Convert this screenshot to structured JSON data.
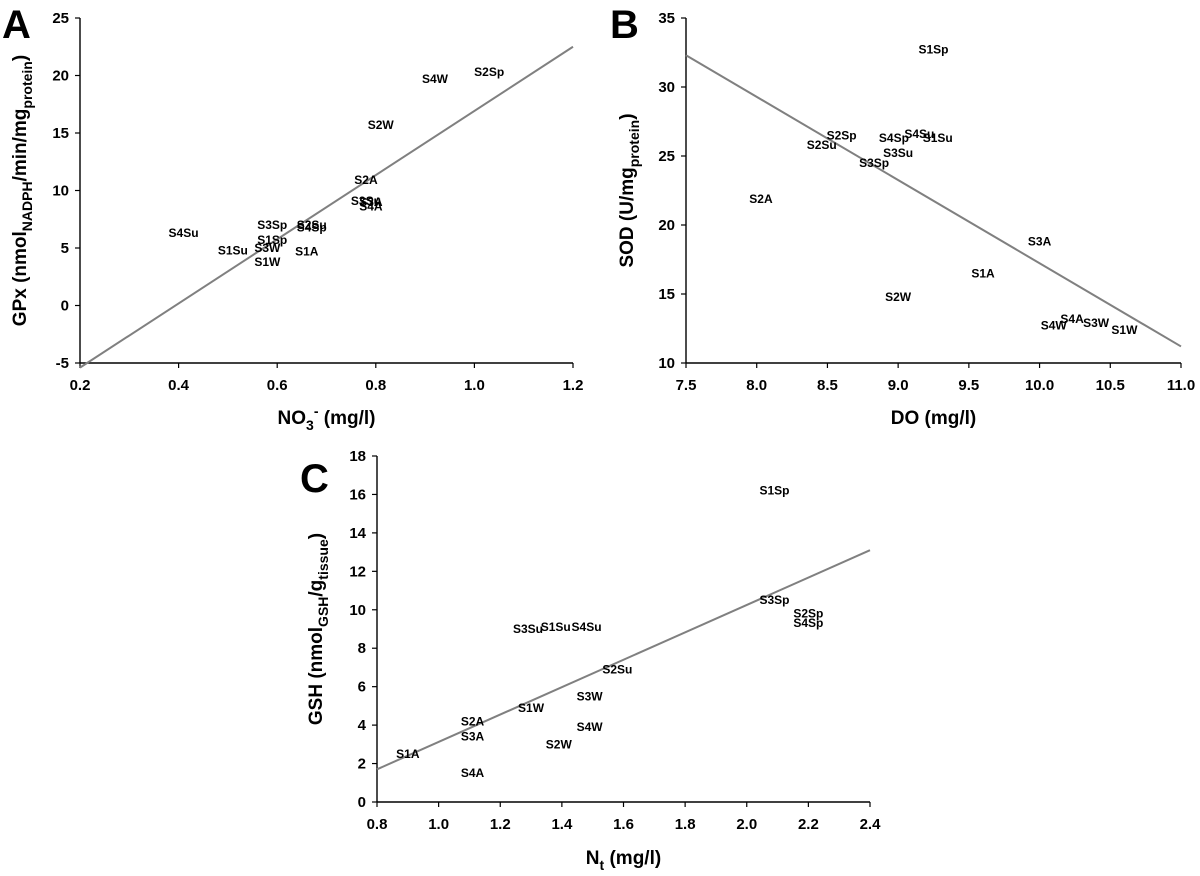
{
  "chart_data": [
    {
      "panel": "A",
      "type": "scatter",
      "title": "",
      "xlabel": {
        "main": "NO",
        "sub": "3",
        "sup": "-",
        "suffix": " (mg/l)"
      },
      "ylabel": {
        "parts": [
          {
            "t": "GPx (nmol",
            "s": "n"
          },
          {
            "t": "NADPH",
            "s": "sub"
          },
          {
            "t": "/min/mg",
            "s": "n"
          },
          {
            "t": "protein",
            "s": "sub"
          },
          {
            "t": ")",
            "s": "n"
          }
        ]
      },
      "xlim": [
        0.2,
        1.2
      ],
      "ylim": [
        -5,
        25
      ],
      "xticks": [
        0.2,
        0.4,
        0.6,
        0.8,
        1.0,
        1.2
      ],
      "xtick_labels": [
        "0.2",
        "0.4",
        "0.6",
        "0.8",
        "1.0",
        "1.2"
      ],
      "yticks": [
        -5,
        0,
        5,
        10,
        15,
        20,
        25
      ],
      "ytick_labels": [
        "-5",
        "0",
        "5",
        "10",
        "15",
        "20",
        "25"
      ],
      "points": [
        {
          "label": "S4W",
          "x": 0.92,
          "y": 19.7
        },
        {
          "label": "S2Sp",
          "x": 1.03,
          "y": 20.3
        },
        {
          "label": "S2W",
          "x": 0.81,
          "y": 15.7
        },
        {
          "label": "S2A",
          "x": 0.78,
          "y": 10.9
        },
        {
          "label": "S3Su",
          "x": 0.78,
          "y": 9.1
        },
        {
          "label": "S3A",
          "x": 0.79,
          "y": 9.0
        },
        {
          "label": "S4A",
          "x": 0.79,
          "y": 8.6
        },
        {
          "label": "S4Su",
          "x": 0.41,
          "y": 6.3
        },
        {
          "label": "S3Sp",
          "x": 0.59,
          "y": 7.0
        },
        {
          "label": "S1Sp",
          "x": 0.59,
          "y": 5.7
        },
        {
          "label": "S3W",
          "x": 0.58,
          "y": 5.0
        },
        {
          "label": "S1Su",
          "x": 0.51,
          "y": 4.8
        },
        {
          "label": "S1W",
          "x": 0.58,
          "y": 3.8
        },
        {
          "label": "S1A",
          "x": 0.66,
          "y": 4.7
        },
        {
          "label": "S2Su",
          "x": 0.67,
          "y": 7.0
        },
        {
          "label": "S4Sp",
          "x": 0.67,
          "y": 6.8
        }
      ],
      "fit": {
        "x": [
          0.2,
          1.2
        ],
        "y": [
          -5.4,
          22.5
        ]
      }
    },
    {
      "panel": "B",
      "type": "scatter",
      "title": "",
      "xlabel": {
        "main": "DO (mg/l)"
      },
      "ylabel": {
        "parts": [
          {
            "t": "SOD (U/mg",
            "s": "n"
          },
          {
            "t": "protein",
            "s": "sub"
          },
          {
            "t": ")",
            "s": "n"
          }
        ]
      },
      "xlim": [
        7.5,
        11.0
      ],
      "ylim": [
        10,
        35
      ],
      "xticks": [
        7.5,
        8.0,
        8.5,
        9.0,
        9.5,
        10.0,
        10.5,
        11.0
      ],
      "xtick_labels": [
        "7.5",
        "8.0",
        "8.5",
        "9.0",
        "9.5",
        "10.0",
        "10.5",
        "11.0"
      ],
      "yticks": [
        10,
        15,
        20,
        25,
        30,
        35
      ],
      "ytick_labels": [
        "10",
        "15",
        "20",
        "25",
        "30",
        "35"
      ],
      "points": [
        {
          "label": "S1Sp",
          "x": 9.25,
          "y": 32.7
        },
        {
          "label": "S2Sp",
          "x": 8.6,
          "y": 26.5
        },
        {
          "label": "S2Su",
          "x": 8.46,
          "y": 25.8
        },
        {
          "label": "S4Sp",
          "x": 8.97,
          "y": 26.3
        },
        {
          "label": "S4Su",
          "x": 9.15,
          "y": 26.6
        },
        {
          "label": "S1Su",
          "x": 9.28,
          "y": 26.3
        },
        {
          "label": "S3Su",
          "x": 9.0,
          "y": 25.2
        },
        {
          "label": "S3Sp",
          "x": 8.83,
          "y": 24.5
        },
        {
          "label": "S2A",
          "x": 8.03,
          "y": 21.9
        },
        {
          "label": "S3A",
          "x": 10.0,
          "y": 18.8
        },
        {
          "label": "S1A",
          "x": 9.6,
          "y": 16.5
        },
        {
          "label": "S2W",
          "x": 9.0,
          "y": 14.8
        },
        {
          "label": "S4A",
          "x": 10.23,
          "y": 13.2
        },
        {
          "label": "S4W",
          "x": 10.1,
          "y": 12.7
        },
        {
          "label": "S3W",
          "x": 10.4,
          "y": 12.9
        },
        {
          "label": "S1W",
          "x": 10.6,
          "y": 12.4
        }
      ],
      "fit": {
        "x": [
          7.5,
          11.0
        ],
        "y": [
          32.3,
          11.2
        ]
      }
    },
    {
      "panel": "C",
      "type": "scatter",
      "title": "",
      "xlabel": {
        "main": "N",
        "sub": "t",
        "suffix": " (mg/l)"
      },
      "ylabel": {
        "parts": [
          {
            "t": "GSH (nmol",
            "s": "n"
          },
          {
            "t": "GSH",
            "s": "sub"
          },
          {
            "t": "/g",
            "s": "n"
          },
          {
            "t": "tissue",
            "s": "sub"
          },
          {
            "t": ")",
            "s": "n"
          }
        ]
      },
      "xlim": [
        0.8,
        2.4
      ],
      "ylim": [
        0,
        18
      ],
      "xticks": [
        0.8,
        1.0,
        1.2,
        1.4,
        1.6,
        1.8,
        2.0,
        2.2,
        2.4
      ],
      "xtick_labels": [
        "0.8",
        "1.0",
        "1.2",
        "1.4",
        "1.6",
        "1.8",
        "2.0",
        "2.2",
        "2.4"
      ],
      "yticks": [
        0,
        2,
        4,
        6,
        8,
        10,
        12,
        14,
        16,
        18
      ],
      "ytick_labels": [
        "0",
        "2",
        "4",
        "6",
        "8",
        "10",
        "12",
        "14",
        "16",
        "18"
      ],
      "points": [
        {
          "label": "S1Sp",
          "x": 2.09,
          "y": 16.2
        },
        {
          "label": "S3Sp",
          "x": 2.09,
          "y": 10.5
        },
        {
          "label": "S2Sp",
          "x": 2.2,
          "y": 9.8
        },
        {
          "label": "S4Sp",
          "x": 2.2,
          "y": 9.3
        },
        {
          "label": "S3Su",
          "x": 1.29,
          "y": 9.0
        },
        {
          "label": "S1Su",
          "x": 1.38,
          "y": 9.1
        },
        {
          "label": "S4Su",
          "x": 1.48,
          "y": 9.1
        },
        {
          "label": "S2Su",
          "x": 1.58,
          "y": 6.9
        },
        {
          "label": "S3W",
          "x": 1.49,
          "y": 5.5
        },
        {
          "label": "S1W",
          "x": 1.3,
          "y": 4.9
        },
        {
          "label": "S4W",
          "x": 1.49,
          "y": 3.9
        },
        {
          "label": "S2A",
          "x": 1.11,
          "y": 4.2
        },
        {
          "label": "S3A",
          "x": 1.11,
          "y": 3.4
        },
        {
          "label": "S2W",
          "x": 1.39,
          "y": 3.0
        },
        {
          "label": "S1A",
          "x": 0.9,
          "y": 2.5
        },
        {
          "label": "S4A",
          "x": 1.11,
          "y": 1.5
        }
      ],
      "fit": {
        "x": [
          0.8,
          2.4
        ],
        "y": [
          1.7,
          13.1
        ]
      }
    }
  ]
}
